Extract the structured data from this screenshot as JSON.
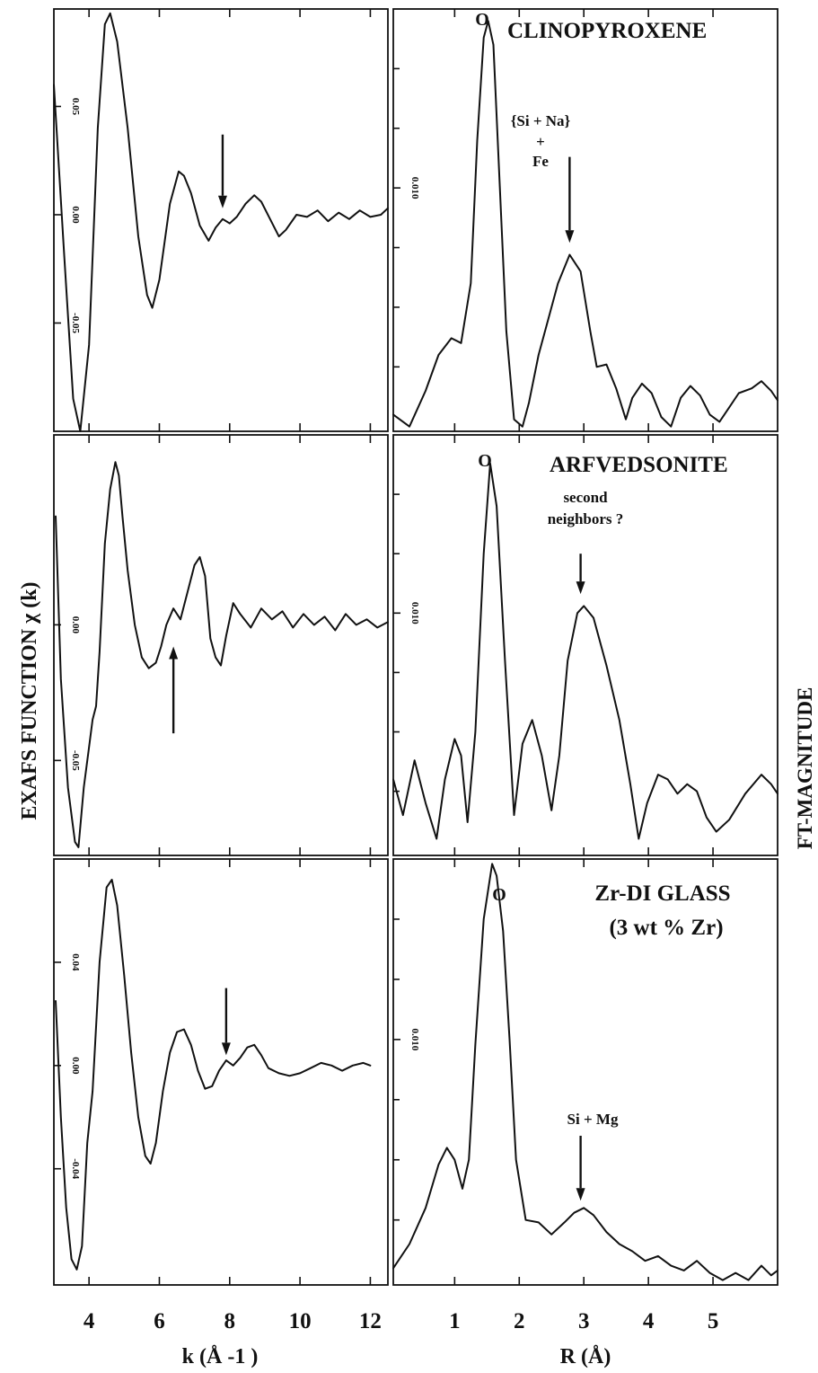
{
  "figure": {
    "left_ylabel": "EXAFS FUNCTION  χ (k)",
    "right_ylabel": "FT-MAGNITUDE",
    "left_xlabel": "k (Å -1 )",
    "right_xlabel": "R (Å)"
  },
  "chart_data": [
    {
      "type": "line",
      "panel": "exafs-clinopyroxene",
      "xlim": [
        3,
        12.5
      ],
      "ylim": [
        -0.1,
        0.095
      ],
      "x_ticks": [
        "4",
        "6",
        "8",
        "10",
        "12"
      ],
      "y_ticks": [
        "0.05",
        "0.00",
        "-0.05"
      ],
      "y_tick_values": [
        0.05,
        0.0,
        -0.05
      ],
      "series": [
        {
          "x": [
            3.0,
            3.3,
            3.55,
            3.75,
            4.0,
            4.25,
            4.45,
            4.6,
            4.8,
            5.1,
            5.4,
            5.65,
            5.8,
            6.0,
            6.3,
            6.55,
            6.7,
            6.9,
            7.15,
            7.4,
            7.6,
            7.8,
            8.0,
            8.2,
            8.45,
            8.7,
            8.9,
            9.15,
            9.4,
            9.6,
            9.9,
            10.2,
            10.5,
            10.8,
            11.1,
            11.4,
            11.7,
            12.0,
            12.3,
            12.5
          ],
          "y": [
            0.06,
            -0.02,
            -0.085,
            -0.1,
            -0.06,
            0.04,
            0.088,
            0.093,
            0.08,
            0.04,
            -0.01,
            -0.037,
            -0.043,
            -0.03,
            0.005,
            0.02,
            0.018,
            0.01,
            -0.005,
            -0.012,
            -0.006,
            -0.002,
            -0.004,
            -0.001,
            0.005,
            0.009,
            0.006,
            -0.002,
            -0.01,
            -0.007,
            0.0,
            -0.001,
            0.002,
            -0.003,
            0.001,
            -0.002,
            0.002,
            -0.001,
            0.0,
            0.003
          ]
        }
      ],
      "arrows": [
        {
          "x": 7.8,
          "y_from": 0.037,
          "y_to": 0.003
        }
      ]
    },
    {
      "type": "line",
      "panel": "ft-clinopyroxene",
      "xlim": [
        0.05,
        6.0
      ],
      "ylim": [
        -0.0002,
        0.0175
      ],
      "x_ticks": [
        "1",
        "2",
        "3",
        "4",
        "5"
      ],
      "y_ticks": [
        "0.010"
      ],
      "y_tick_values": [
        0.01
      ],
      "title": "CLINOPYROXENE",
      "peak_label": "O",
      "annotation_lines": [
        "{Si + Na}",
        "+",
        "Fe"
      ],
      "series": [
        {
          "x": [
            0.05,
            0.3,
            0.55,
            0.75,
            0.95,
            1.1,
            1.25,
            1.35,
            1.45,
            1.52,
            1.6,
            1.7,
            1.8,
            1.92,
            2.05,
            2.15,
            2.3,
            2.45,
            2.6,
            2.78,
            2.95,
            3.1,
            3.2,
            3.35,
            3.5,
            3.65,
            3.75,
            3.9,
            4.05,
            4.2,
            4.35,
            4.5,
            4.65,
            4.8,
            4.95,
            5.1,
            5.25,
            5.4,
            5.6,
            5.75,
            5.9,
            6.0
          ],
          "y": [
            0.0005,
            0.0,
            0.0015,
            0.003,
            0.0037,
            0.0035,
            0.006,
            0.012,
            0.0163,
            0.017,
            0.016,
            0.01,
            0.004,
            0.0003,
            0.0,
            0.001,
            0.003,
            0.0045,
            0.006,
            0.0072,
            0.0065,
            0.004,
            0.0025,
            0.0026,
            0.0016,
            0.0003,
            0.0012,
            0.0018,
            0.0014,
            0.0004,
            0.0,
            0.0012,
            0.0017,
            0.0013,
            0.0005,
            0.0002,
            0.0008,
            0.0014,
            0.0016,
            0.0019,
            0.0015,
            0.0011
          ]
        }
      ],
      "arrows": [
        {
          "x": 2.78,
          "y_from": 0.0113,
          "y_to": 0.0077
        }
      ]
    },
    {
      "type": "line",
      "panel": "exafs-arfvedsonite",
      "xlim": [
        3,
        12.5
      ],
      "ylim": [
        -0.085,
        0.07
      ],
      "x_ticks": [
        "4",
        "6",
        "8",
        "10",
        "12"
      ],
      "y_ticks": [
        "0.00",
        "-0.05"
      ],
      "y_tick_values": [
        0.0,
        -0.05
      ],
      "series": [
        {
          "x": [
            3.05,
            3.2,
            3.4,
            3.6,
            3.7,
            3.85,
            4.0,
            4.1,
            4.2,
            4.3,
            4.45,
            4.6,
            4.75,
            4.85,
            4.95,
            5.1,
            5.3,
            5.5,
            5.7,
            5.9,
            6.05,
            6.2,
            6.4,
            6.6,
            6.8,
            7.0,
            7.15,
            7.3,
            7.45,
            7.6,
            7.75,
            7.9,
            8.1,
            8.3,
            8.6,
            8.9,
            9.2,
            9.5,
            9.8,
            10.1,
            10.4,
            10.7,
            11.0,
            11.3,
            11.6,
            11.9,
            12.2,
            12.5
          ],
          "y": [
            0.04,
            -0.02,
            -0.06,
            -0.08,
            -0.082,
            -0.06,
            -0.045,
            -0.035,
            -0.03,
            -0.01,
            0.03,
            0.05,
            0.06,
            0.055,
            0.04,
            0.02,
            0.0,
            -0.012,
            -0.016,
            -0.014,
            -0.008,
            0.0,
            0.006,
            0.002,
            0.012,
            0.022,
            0.025,
            0.018,
            -0.005,
            -0.012,
            -0.015,
            -0.004,
            0.008,
            0.004,
            -0.001,
            0.006,
            0.002,
            0.005,
            -0.001,
            0.004,
            0.0,
            0.003,
            -0.002,
            0.004,
            0.0,
            0.002,
            -0.001,
            0.001
          ]
        }
      ],
      "arrows": [
        {
          "x": 6.4,
          "y_from": -0.04,
          "y_to": -0.008
        }
      ]
    },
    {
      "type": "line",
      "panel": "ft-arfvedsonite",
      "xlim": [
        0.05,
        6.0
      ],
      "ylim": [
        -0.0002,
        0.0175
      ],
      "x_ticks": [
        "1",
        "2",
        "3",
        "4",
        "5"
      ],
      "y_ticks": [
        "0.010"
      ],
      "y_tick_values": [
        0.01
      ],
      "title": "ARFVEDSONITE",
      "peak_label": "O",
      "annotation_lines": [
        "second",
        "neighbors ?"
      ],
      "series": [
        {
          "x": [
            0.05,
            0.2,
            0.38,
            0.55,
            0.72,
            0.85,
            1.0,
            1.1,
            1.2,
            1.32,
            1.45,
            1.55,
            1.65,
            1.78,
            1.92,
            2.05,
            2.2,
            2.35,
            2.5,
            2.62,
            2.75,
            2.9,
            3.0,
            3.15,
            3.35,
            3.55,
            3.72,
            3.85,
            3.98,
            4.15,
            4.3,
            4.45,
            4.6,
            4.75,
            4.9,
            5.05,
            5.25,
            5.5,
            5.75,
            5.9,
            6.0
          ],
          "y": [
            0.003,
            0.0015,
            0.0038,
            0.002,
            0.0005,
            0.003,
            0.0047,
            0.004,
            0.0012,
            0.005,
            0.0125,
            0.0163,
            0.0145,
            0.008,
            0.0015,
            0.0045,
            0.0055,
            0.004,
            0.0017,
            0.004,
            0.008,
            0.01,
            0.0103,
            0.0098,
            0.0078,
            0.0055,
            0.0028,
            0.0005,
            0.002,
            0.0032,
            0.003,
            0.0024,
            0.0028,
            0.0025,
            0.0014,
            0.0008,
            0.0013,
            0.0024,
            0.0032,
            0.0028,
            0.0024
          ]
        }
      ],
      "arrows": [
        {
          "x": 2.95,
          "y_from": 0.0125,
          "y_to": 0.0108
        }
      ]
    },
    {
      "type": "line",
      "panel": "exafs-zr-di-glass",
      "xlim": [
        3,
        12.5
      ],
      "ylim": [
        -0.085,
        0.08
      ],
      "x_ticks": [
        "4",
        "6",
        "8",
        "10",
        "12"
      ],
      "y_ticks": [
        "0.04",
        "0.00",
        "-0.04"
      ],
      "y_tick_values": [
        0.04,
        0.0,
        -0.04
      ],
      "series": [
        {
          "x": [
            3.05,
            3.2,
            3.35,
            3.5,
            3.65,
            3.8,
            3.95,
            4.1,
            4.3,
            4.5,
            4.65,
            4.8,
            5.0,
            5.2,
            5.4,
            5.6,
            5.75,
            5.9,
            6.1,
            6.3,
            6.5,
            6.7,
            6.9,
            7.1,
            7.3,
            7.5,
            7.7,
            7.9,
            8.1,
            8.3,
            8.5,
            8.7,
            8.9,
            9.1,
            9.4,
            9.7,
            10.0,
            10.3,
            10.6,
            10.9,
            11.2,
            11.5,
            11.8,
            12.0
          ],
          "y": [
            0.025,
            -0.02,
            -0.055,
            -0.075,
            -0.079,
            -0.07,
            -0.03,
            -0.01,
            0.04,
            0.069,
            0.072,
            0.062,
            0.035,
            0.005,
            -0.02,
            -0.035,
            -0.038,
            -0.03,
            -0.01,
            0.005,
            0.013,
            0.014,
            0.008,
            -0.002,
            -0.009,
            -0.008,
            -0.002,
            0.002,
            0.0,
            0.003,
            0.007,
            0.008,
            0.004,
            -0.001,
            -0.003,
            -0.004,
            -0.003,
            -0.001,
            0.001,
            0.0,
            -0.002,
            0.0,
            0.001,
            0.0
          ]
        }
      ],
      "arrows": [
        {
          "x": 7.9,
          "y_from": 0.03,
          "y_to": 0.004
        }
      ]
    },
    {
      "type": "line",
      "panel": "ft-zr-di-glass",
      "xlim": [
        0.05,
        6.0
      ],
      "ylim": [
        -0.0002,
        0.0175
      ],
      "x_ticks": [
        "1",
        "2",
        "3",
        "4",
        "5"
      ],
      "y_ticks": [
        "0.010"
      ],
      "y_tick_values": [
        0.01
      ],
      "title": "Zr-DI GLASS",
      "subtitle": "(3 wt % Zr)",
      "peak_label": "O",
      "annotation_lines": [
        "Si + Mg"
      ],
      "series": [
        {
          "x": [
            0.05,
            0.3,
            0.55,
            0.75,
            0.88,
            1.0,
            1.12,
            1.22,
            1.32,
            1.45,
            1.58,
            1.65,
            1.75,
            1.85,
            1.95,
            2.1,
            2.3,
            2.5,
            2.7,
            2.85,
            3.0,
            3.15,
            3.35,
            3.55,
            3.75,
            3.95,
            4.15,
            4.35,
            4.55,
            4.75,
            4.95,
            5.15,
            5.35,
            5.55,
            5.75,
            5.9,
            6.0
          ],
          "y": [
            0.0005,
            0.0015,
            0.003,
            0.0048,
            0.0055,
            0.005,
            0.0038,
            0.005,
            0.0098,
            0.015,
            0.0173,
            0.0168,
            0.0145,
            0.01,
            0.005,
            0.0025,
            0.0024,
            0.0019,
            0.0024,
            0.0028,
            0.003,
            0.0027,
            0.002,
            0.0015,
            0.0012,
            0.0008,
            0.001,
            0.0006,
            0.0004,
            0.0008,
            0.0003,
            0.0,
            0.0003,
            0.0,
            0.0006,
            0.0002,
            0.0004
          ]
        }
      ],
      "arrows": [
        {
          "x": 2.95,
          "y_from": 0.006,
          "y_to": 0.0033
        }
      ]
    }
  ]
}
